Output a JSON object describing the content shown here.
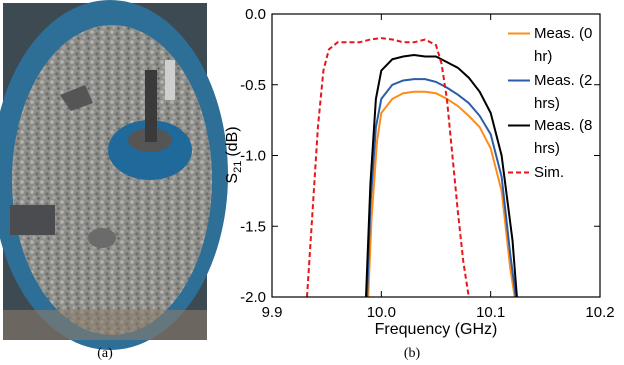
{
  "captions": [
    "(a)",
    "(b)"
  ],
  "chart_data": {
    "type": "line",
    "xlabel": "Frequency (GHz)",
    "ylabel_parts": [
      "S",
      "21",
      "(dB)"
    ],
    "xlim": [
      9.9,
      10.2
    ],
    "ylim": [
      -2,
      0
    ],
    "xticks": [
      9.9,
      {
        "value": 10,
        "label": "10.0"
      },
      10.1,
      10.2
    ],
    "yticks": [
      {
        "value": 0,
        "label": "0.0"
      },
      -0.5,
      {
        "value": -1,
        "label": "-1.0"
      },
      -1.5,
      {
        "value": -2,
        "label": "-2.0"
      }
    ],
    "legend": "upper right",
    "series": [
      {
        "name": "Meas. (0 hr)",
        "color": "#ff8c1a",
        "dash": false,
        "x": [
          9.988,
          9.991,
          9.996,
          10.0,
          10.01,
          10.02,
          10.03,
          10.04,
          10.05,
          10.06,
          10.07,
          10.08,
          10.09,
          10.1,
          10.11,
          10.118,
          10.122
        ],
        "values": [
          -2,
          -1.45,
          -0.9,
          -0.7,
          -0.6,
          -0.56,
          -0.55,
          -0.55,
          -0.56,
          -0.6,
          -0.65,
          -0.72,
          -0.8,
          -0.95,
          -1.25,
          -1.8,
          -2
        ]
      },
      {
        "name": "Meas. (2 hrs)",
        "color": "#2a5caa",
        "dash": false,
        "x": [
          9.987,
          9.99,
          9.995,
          10.0,
          10.01,
          10.02,
          10.03,
          10.04,
          10.05,
          10.06,
          10.07,
          10.08,
          10.09,
          10.1,
          10.11,
          10.118,
          10.123
        ],
        "values": [
          -2,
          -1.35,
          -0.8,
          -0.6,
          -0.5,
          -0.47,
          -0.46,
          -0.46,
          -0.48,
          -0.52,
          -0.57,
          -0.63,
          -0.72,
          -0.85,
          -1.15,
          -1.7,
          -2
        ]
      },
      {
        "name": "Meas. (8 hrs)",
        "color": "#000000",
        "dash": false,
        "x": [
          9.986,
          9.99,
          9.995,
          10.0,
          10.01,
          10.02,
          10.03,
          10.04,
          10.05,
          10.06,
          10.07,
          10.08,
          10.09,
          10.1,
          10.11,
          10.12,
          10.124
        ],
        "values": [
          -2,
          -1.2,
          -0.6,
          -0.4,
          -0.32,
          -0.3,
          -0.29,
          -0.3,
          -0.3,
          -0.34,
          -0.38,
          -0.45,
          -0.55,
          -0.7,
          -1.0,
          -1.6,
          -2
        ]
      },
      {
        "name": "Sim.",
        "color": "#e8161b",
        "dash": true,
        "x": [
          9.932,
          9.937,
          9.942,
          9.947,
          9.952,
          9.96,
          9.97,
          9.98,
          9.99,
          10.0,
          10.01,
          10.02,
          10.03,
          10.04,
          10.05,
          10.055,
          10.06,
          10.065,
          10.07,
          10.075,
          10.08
        ],
        "values": [
          -2,
          -1.4,
          -0.8,
          -0.4,
          -0.25,
          -0.2,
          -0.2,
          -0.2,
          -0.18,
          -0.17,
          -0.18,
          -0.2,
          -0.2,
          -0.18,
          -0.22,
          -0.35,
          -0.6,
          -1.0,
          -1.4,
          -1.75,
          -2
        ]
      }
    ]
  }
}
